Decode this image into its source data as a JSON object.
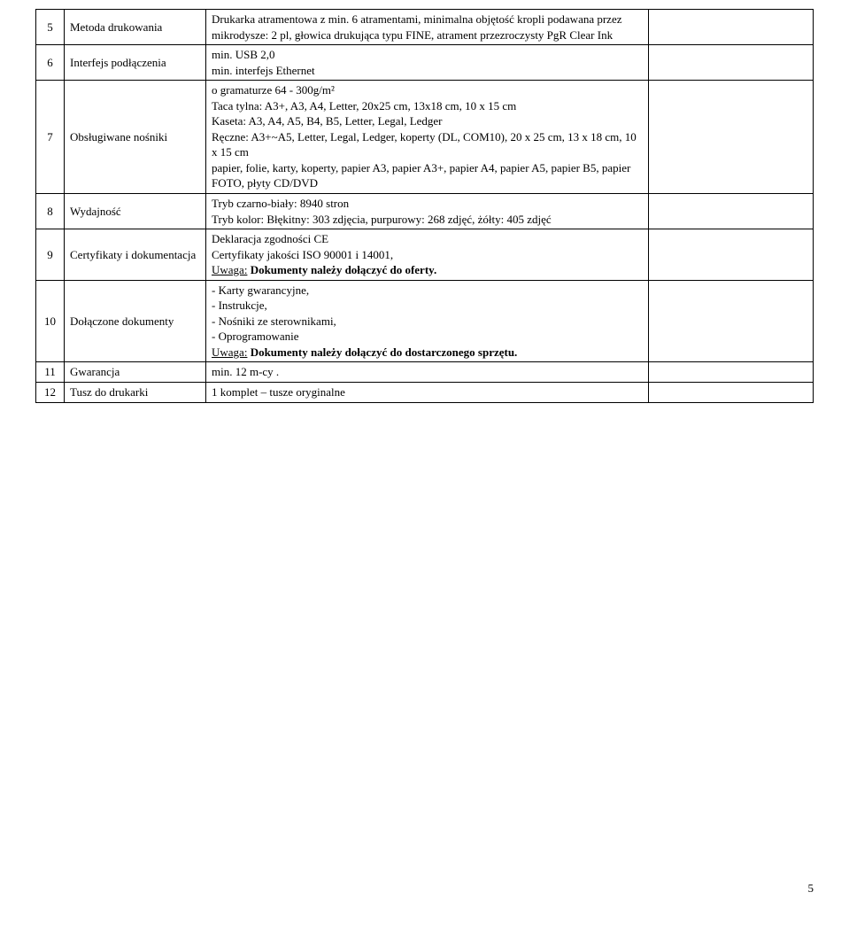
{
  "rows": [
    {
      "num": "5",
      "label": "Metoda drukowania",
      "desc": "Drukarka atramentowa z min. 6 atramentami, minimalna objętość kropli podawana przez mikrodysze: 2 pl, głowica drukująca typu FINE, atrament przezroczysty PgR Clear Ink"
    },
    {
      "num": "6",
      "label": "Interfejs podłączenia",
      "desc": "min. USB 2,0\nmin. interfejs Ethernet"
    },
    {
      "num": "7",
      "label": "Obsługiwane nośniki",
      "desc": "o gramaturze 64 - 300g/m²\nTaca tylna: A3+, A3, A4, Letter, 20x25 cm, 13x18 cm, 10 x 15 cm\nKaseta: A3, A4, A5, B4, B5, Letter, Legal, Ledger\nRęczne: A3+~A5, Letter, Legal, Ledger, koperty (DL, COM10), 20 x 25 cm, 13 x 18 cm, 10 x 15 cm\npapier, folie, karty, koperty, papier A3, papier A3+, papier A4, papier A5, papier B5, papier FOTO, płyty CD/DVD"
    },
    {
      "num": "8",
      "label": "Wydajność",
      "desc": "Tryb czarno-biały: 8940 stron\nTryb kolor: Błękitny: 303 zdjęcia, purpurowy: 268 zdjęć, żółty: 405 zdjęć"
    },
    {
      "num": "9",
      "label": "Certyfikaty i dokumentacja",
      "desc_plain": "Deklaracja zgodności CE\nCertyfikaty jakości ISO 90001 i 14001,",
      "desc_uwaga_prefix": "Uwaga:",
      "desc_uwaga_bold": " Dokumenty należy dołączyć do oferty."
    },
    {
      "num": "10",
      "label": "Dołączone dokumenty",
      "desc_plain": "- Karty gwarancyjne,\n- Instrukcje,\n- Nośniki ze sterownikami,\n- Oprogramowanie",
      "desc_uwaga_prefix": "Uwaga:",
      "desc_uwaga_bold": " Dokumenty należy dołączyć do dostarczonego sprzętu."
    },
    {
      "num": "11",
      "label": "Gwarancja",
      "desc": "min. 12 m-cy ."
    },
    {
      "num": "12",
      "label": "Tusz do drukarki",
      "desc": "1 komplet – tusze oryginalne"
    }
  ],
  "page_number": "5"
}
